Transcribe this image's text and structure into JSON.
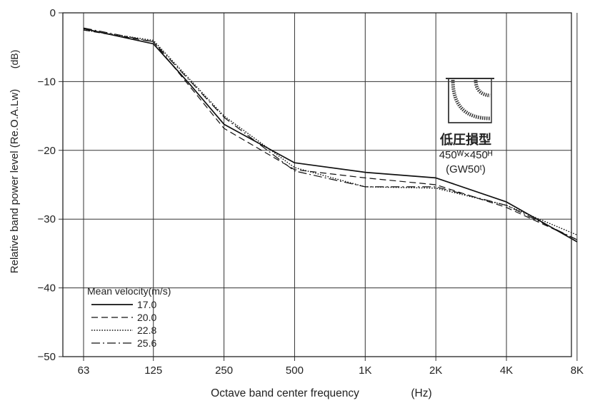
{
  "chart_data": {
    "type": "line",
    "xlabel": "Octave band center frequency",
    "xunit": "(Hz)",
    "ylabel": "Relative band power level (Re.O.A.Lw)",
    "yunit": "(dB)",
    "categories": [
      "63",
      "125",
      "250",
      "500",
      "1K",
      "2K",
      "4K",
      "8K"
    ],
    "x_scale": "log2 (octave)",
    "x_values_hz": [
      63,
      125,
      250,
      500,
      1000,
      2000,
      4000,
      8000
    ],
    "ylim": [
      -50,
      0
    ],
    "yticks": [
      0,
      -10,
      -20,
      -30,
      -40,
      -50
    ],
    "ytick_labels": [
      "0",
      "−10",
      "−20",
      "−30",
      "−40",
      "−50"
    ],
    "grid": true,
    "legend_title": "Mean velocity(m/s)",
    "legend_position": "bottom-left",
    "series": [
      {
        "name": "17.0",
        "style": "solid",
        "x": [
          63,
          125,
          180,
          250,
          500,
          1000,
          2000,
          4000,
          8000
        ],
        "y": [
          -2.3,
          -4.5,
          -10.5,
          -16.2,
          -21.8,
          -23.2,
          -24.0,
          -27.5,
          -33.3
        ]
      },
      {
        "name": "20.0",
        "style": "dashed",
        "x": [
          63,
          125,
          250,
          500,
          1000,
          2000,
          4000,
          8000
        ],
        "y": [
          -2.5,
          -4.2,
          -16.8,
          -22.8,
          -24.0,
          -25.0,
          -28.3,
          -33.0
        ]
      },
      {
        "name": "22.8",
        "style": "dotted",
        "x": [
          63,
          125,
          250,
          500,
          1000,
          2000,
          4000,
          8000
        ],
        "y": [
          -2.5,
          -4.0,
          -15.0,
          -22.5,
          -25.3,
          -25.5,
          -28.0,
          -32.3
        ]
      },
      {
        "name": "25.6",
        "style": "dashdot",
        "x": [
          63,
          125,
          250,
          500,
          1000,
          2000,
          4000,
          8000
        ],
        "y": [
          -2.2,
          -4.2,
          -15.2,
          -23.0,
          -25.3,
          -25.3,
          -28.0,
          -33.0
        ]
      }
    ],
    "annotation": {
      "title": "低圧損型",
      "size": "450ᵂ×450ᴴ",
      "insulation": "(GW50ᵗ)"
    }
  }
}
